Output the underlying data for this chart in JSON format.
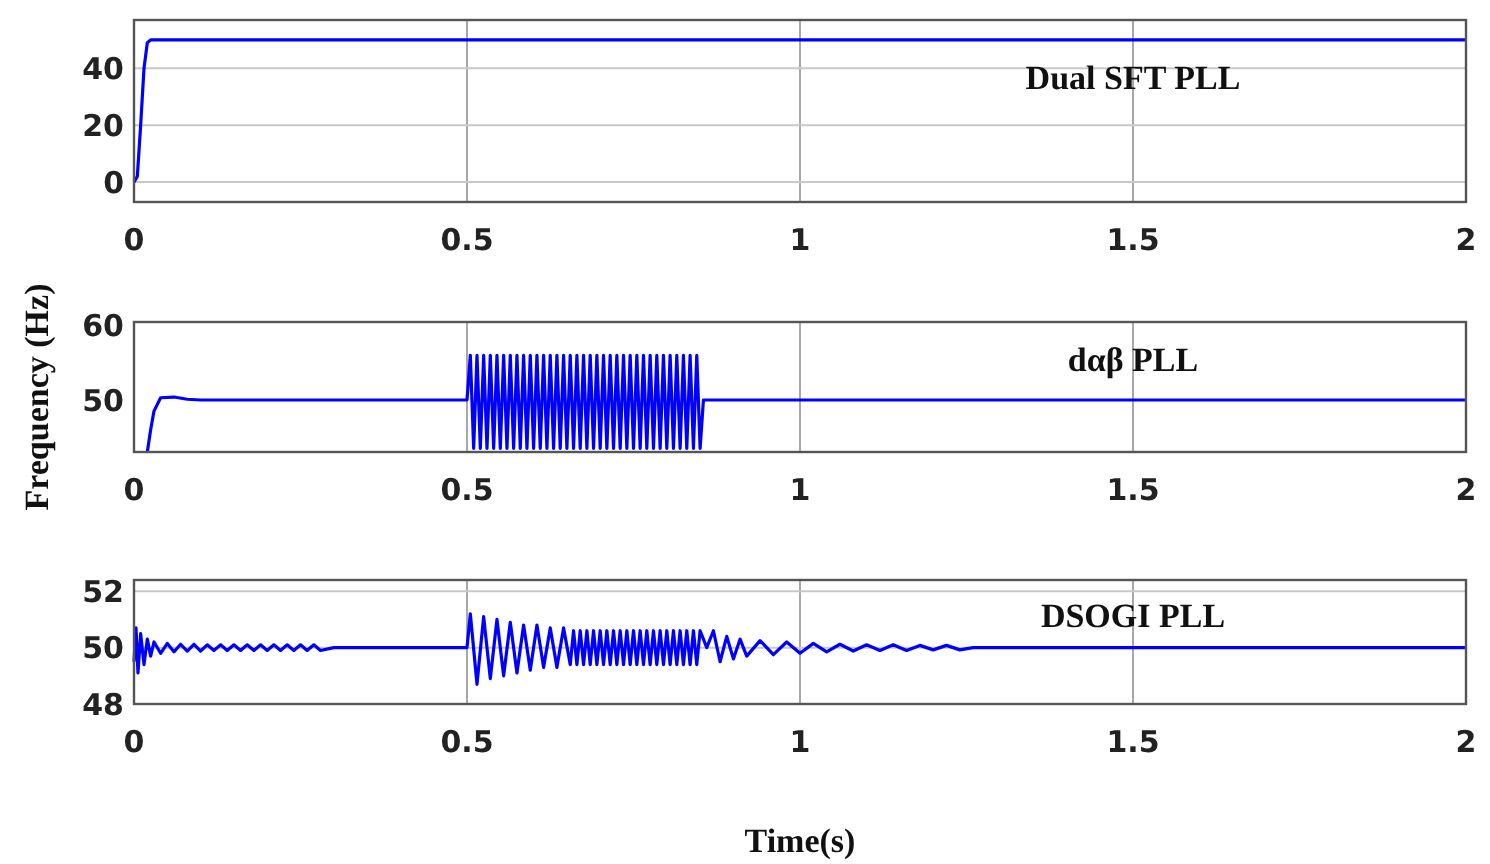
{
  "chart_data": [
    {
      "type": "line",
      "title": "Dual SFT PLL",
      "xlim": [
        0,
        2
      ],
      "xticks": [
        0,
        0.5,
        1,
        1.5,
        2
      ],
      "ylim": [
        -7,
        57
      ],
      "yticks": [
        0,
        20,
        40
      ],
      "grid": true,
      "series": [
        {
          "color": "#0000ff",
          "x": [
            0,
            0.005,
            0.01,
            0.015,
            0.02,
            0.025,
            2
          ],
          "values": [
            0,
            2,
            20,
            40,
            49,
            50,
            50
          ]
        }
      ]
    },
    {
      "type": "line",
      "title": "dαβ PLL",
      "ylabel": "Frequency (Hz)",
      "xlim": [
        0,
        2
      ],
      "xticks": [
        0,
        0.5,
        1,
        1.5,
        2
      ],
      "ylim": [
        43,
        60.5
      ],
      "yticks": [
        50,
        60
      ],
      "grid": "x",
      "series": [
        {
          "color": "#0000ff",
          "x": [
            0.02,
            0.025,
            0.03,
            0.04,
            0.06,
            0.08,
            0.1,
            0.5,
            0.505,
            0.51,
            0.515,
            0.52,
            0.525,
            0.53,
            0.535,
            0.54,
            0.545,
            0.55,
            0.555,
            0.56,
            0.565,
            0.57,
            0.575,
            0.58,
            0.585,
            0.59,
            0.595,
            0.6,
            0.605,
            0.61,
            0.615,
            0.62,
            0.625,
            0.63,
            0.635,
            0.64,
            0.645,
            0.65,
            0.655,
            0.66,
            0.665,
            0.67,
            0.675,
            0.68,
            0.685,
            0.69,
            0.695,
            0.7,
            0.705,
            0.71,
            0.715,
            0.72,
            0.725,
            0.73,
            0.735,
            0.74,
            0.745,
            0.75,
            0.755,
            0.76,
            0.765,
            0.77,
            0.775,
            0.78,
            0.785,
            0.79,
            0.795,
            0.8,
            0.805,
            0.81,
            0.815,
            0.82,
            0.825,
            0.83,
            0.835,
            0.84,
            0.845,
            0.85,
            0.855,
            2
          ],
          "values": [
            43,
            46,
            48.5,
            50.3,
            50.4,
            50.1,
            50,
            50,
            56,
            43.5,
            56,
            43.5,
            56,
            43.5,
            56,
            43.5,
            56,
            43.5,
            56,
            43.5,
            56,
            43.5,
            56,
            43.5,
            56,
            43.5,
            56,
            43.5,
            56,
            43.5,
            56,
            43.5,
            56,
            43.5,
            56,
            43.5,
            56,
            43.5,
            56,
            43.5,
            56,
            43.5,
            56,
            43.5,
            56,
            43.5,
            56,
            43.5,
            56,
            43.5,
            56,
            43.5,
            56,
            43.5,
            56,
            43.5,
            56,
            43.5,
            56,
            43.5,
            56,
            43.5,
            56,
            43.5,
            56,
            43.5,
            56,
            43.5,
            56,
            43.5,
            56,
            43.5,
            56,
            43.5,
            56,
            43.5,
            56,
            43.5,
            50,
            50
          ]
        }
      ]
    },
    {
      "type": "line",
      "title": "DSOGI PLL",
      "xlabel": "Time(s)",
      "xlim": [
        0,
        2
      ],
      "xticks": [
        0,
        0.5,
        1,
        1.5,
        2
      ],
      "ylim": [
        48,
        52.4
      ],
      "yticks": [
        48,
        50,
        52
      ],
      "grid": true,
      "series": [
        {
          "color": "#0000ff",
          "x": [
            0,
            0.003,
            0.006,
            0.01,
            0.015,
            0.02,
            0.025,
            0.03,
            0.04,
            0.05,
            0.06,
            0.07,
            0.08,
            0.09,
            0.1,
            0.11,
            0.12,
            0.13,
            0.14,
            0.15,
            0.16,
            0.17,
            0.18,
            0.19,
            0.2,
            0.21,
            0.22,
            0.23,
            0.24,
            0.25,
            0.26,
            0.27,
            0.28,
            0.3,
            0.5,
            0.505,
            0.515,
            0.525,
            0.535,
            0.545,
            0.555,
            0.565,
            0.575,
            0.585,
            0.595,
            0.605,
            0.615,
            0.625,
            0.635,
            0.645,
            0.655,
            0.66,
            0.665,
            0.67,
            0.675,
            0.68,
            0.685,
            0.69,
            0.695,
            0.7,
            0.705,
            0.71,
            0.715,
            0.72,
            0.725,
            0.73,
            0.735,
            0.74,
            0.745,
            0.75,
            0.755,
            0.76,
            0.765,
            0.77,
            0.775,
            0.78,
            0.785,
            0.79,
            0.795,
            0.8,
            0.805,
            0.81,
            0.815,
            0.82,
            0.825,
            0.83,
            0.835,
            0.84,
            0.845,
            0.85,
            0.86,
            0.87,
            0.88,
            0.89,
            0.9,
            0.91,
            0.92,
            0.94,
            0.96,
            0.98,
            1.0,
            1.02,
            1.04,
            1.06,
            1.08,
            1.1,
            1.12,
            1.14,
            1.16,
            1.18,
            1.2,
            1.22,
            1.24,
            1.26,
            2
          ],
          "values": [
            49.5,
            50.7,
            49.1,
            50.5,
            49.4,
            50.3,
            49.7,
            50.2,
            49.8,
            50.15,
            49.85,
            50.12,
            49.88,
            50.12,
            49.88,
            50.1,
            49.9,
            50.1,
            49.9,
            50.1,
            49.9,
            50.1,
            49.9,
            50.1,
            49.9,
            50.1,
            49.9,
            50.1,
            49.9,
            50.1,
            49.9,
            50.1,
            49.9,
            50,
            50,
            51.2,
            48.7,
            51.1,
            48.9,
            51,
            49,
            50.9,
            49.1,
            50.8,
            49.2,
            50.8,
            49.3,
            50.7,
            49.3,
            50.7,
            49.4,
            50.6,
            49.4,
            50.6,
            49.4,
            50.6,
            49.4,
            50.6,
            49.4,
            50.6,
            49.4,
            50.6,
            49.4,
            50.6,
            49.4,
            50.6,
            49.4,
            50.6,
            49.4,
            50.6,
            49.4,
            50.6,
            49.4,
            50.6,
            49.4,
            50.6,
            49.4,
            50.6,
            49.4,
            50.6,
            49.4,
            50.6,
            49.4,
            50.6,
            49.4,
            50.6,
            49.4,
            50.6,
            49.4,
            50.6,
            50,
            50.6,
            49.5,
            50.4,
            49.6,
            50.3,
            49.7,
            50.25,
            49.75,
            50.2,
            49.8,
            50.15,
            49.85,
            50.12,
            49.88,
            50.1,
            49.9,
            50.1,
            49.9,
            50.08,
            49.92,
            50.08,
            49.92,
            50,
            50
          ]
        }
      ]
    }
  ]
}
